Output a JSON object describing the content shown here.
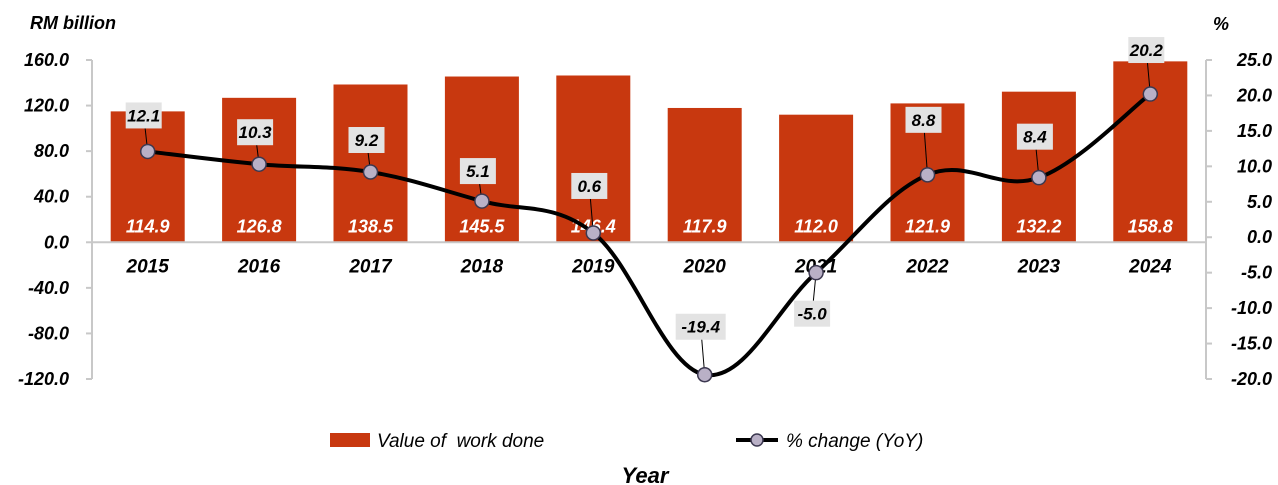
{
  "chart_data": {
    "type": "bar",
    "categories": [
      "2015",
      "2016",
      "2017",
      "2018",
      "2019",
      "2020",
      "2021",
      "2022",
      "2023",
      "2024"
    ],
    "series": [
      {
        "name": "Value of  work done",
        "type": "bar",
        "axis": "left",
        "values": [
          114.9,
          126.8,
          138.5,
          145.5,
          146.4,
          117.9,
          112.0,
          121.9,
          132.2,
          158.8
        ],
        "value_labels": [
          "114.9",
          "126.8",
          "138.5",
          "145.5",
          "146.4",
          "117.9",
          "112.0",
          "121.9",
          "132.2",
          "158.8"
        ]
      },
      {
        "name": "% change (YoY)",
        "type": "line",
        "axis": "right",
        "values": [
          12.1,
          10.3,
          9.2,
          5.1,
          0.6,
          -19.4,
          -5.0,
          8.8,
          8.4,
          20.2
        ],
        "value_labels": [
          "12.1",
          "10.3",
          "9.2",
          "5.1",
          "0.6",
          "-19.4",
          "-5.0",
          "8.8",
          "8.4",
          "20.2"
        ]
      }
    ],
    "ylabel": "RM billion",
    "y2label": "%",
    "xlabel": "Year",
    "ylim": [
      -120,
      160
    ],
    "y2lim": [
      -20,
      25
    ],
    "yticks": [
      "160.0",
      "120.0",
      "80.0",
      "40.0",
      "0.0",
      "-40.0",
      "-80.0",
      "-120.0"
    ],
    "yticks_values": [
      160,
      120,
      80,
      40,
      0,
      -40,
      -80,
      -120
    ],
    "y2ticks": [
      "25.0",
      "20.0",
      "15.0",
      "10.0",
      "5.0",
      "0.0",
      "-5.0",
      "-10.0",
      "-15.0",
      "-20.0"
    ],
    "y2ticks_values": [
      25,
      20,
      15,
      10,
      5,
      0,
      -5,
      -10,
      -15,
      -20
    ],
    "grid": false,
    "legend_position": "bottom",
    "colors": {
      "bar": "#c8380f",
      "line": "#000000",
      "marker_fill": "#b9b0c6",
      "marker_stroke": "#3c3850",
      "label_box": "#e3e3e3",
      "axis": "#c8c8c8"
    }
  }
}
